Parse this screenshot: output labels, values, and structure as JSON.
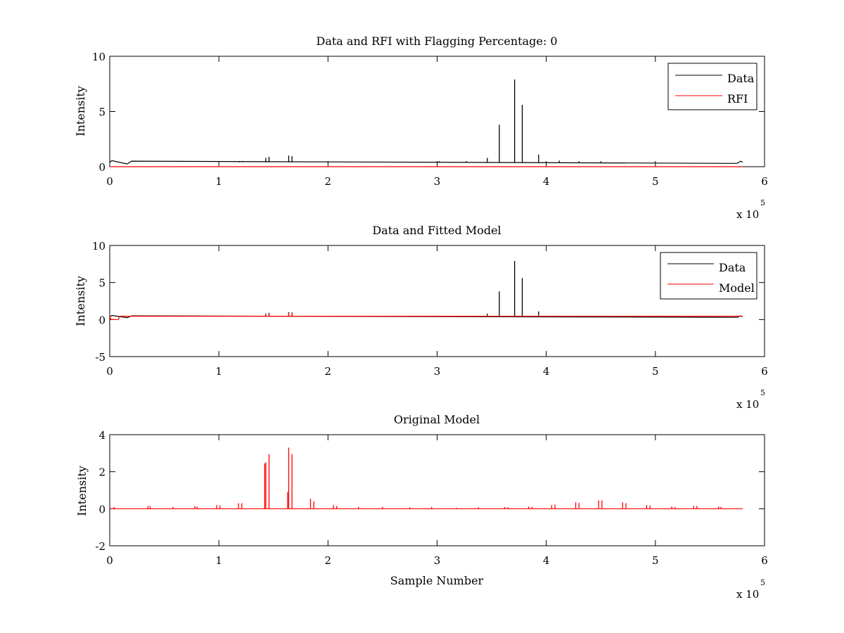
{
  "figure": {
    "background": "#ffffff",
    "colors": {
      "data": "#000000",
      "rfi": "#ff0000",
      "model": "#ff0000"
    }
  },
  "chart_data": [
    {
      "type": "line",
      "title": "Data and RFI with Flagging Percentage: 0",
      "xlabel": "",
      "ylabel": "Intensity",
      "xlim": [
        0,
        600000
      ],
      "ylim": [
        0,
        10
      ],
      "xticks": [
        0,
        100000,
        200000,
        300000,
        400000,
        500000,
        600000
      ],
      "xtick_labels": [
        "0",
        "1",
        "2",
        "3",
        "4",
        "5",
        "6"
      ],
      "yticks": [
        0,
        5,
        10
      ],
      "ytick_labels": [
        "0",
        "5",
        "10"
      ],
      "x_multiplier": {
        "base": "x 10",
        "exponent": "5"
      },
      "legend": {
        "position": "top-right",
        "entries": [
          "Data",
          "RFI"
        ]
      },
      "series": [
        {
          "name": "Data",
          "color": "#000000",
          "baseline": 0.4,
          "x_end": 580000,
          "dips": [
            [
              2000,
              0.55
            ],
            [
              16000,
              0.25
            ],
            [
              20000,
              0.5
            ],
            [
              575000,
              0.3
            ],
            [
              578000,
              0.5
            ]
          ],
          "spikes": [
            [
              143000,
              0.8
            ],
            [
              146000,
              0.9
            ],
            [
              164000,
              1.0
            ],
            [
              167000,
              0.95
            ],
            [
              119000,
              0.5
            ],
            [
              122000,
              0.5
            ],
            [
              302000,
              0.5
            ],
            [
              327000,
              0.5
            ],
            [
              346000,
              0.8
            ],
            [
              357000,
              3.8
            ],
            [
              371000,
              7.9
            ],
            [
              378000,
              5.6
            ],
            [
              393000,
              1.1
            ],
            [
              412000,
              0.55
            ],
            [
              430000,
              0.5
            ],
            [
              450000,
              0.5
            ]
          ]
        },
        {
          "name": "RFI",
          "color": "#ff0000",
          "baseline": 0,
          "x_end": 580000,
          "spikes": []
        }
      ]
    },
    {
      "type": "line",
      "title": "Data and Fitted Model",
      "xlabel": "",
      "ylabel": "Intensity",
      "xlim": [
        0,
        600000
      ],
      "ylim": [
        -5,
        10
      ],
      "xticks": [
        0,
        100000,
        200000,
        300000,
        400000,
        500000,
        600000
      ],
      "xtick_labels": [
        "0",
        "1",
        "2",
        "3",
        "4",
        "5",
        "6"
      ],
      "yticks": [
        -5,
        0,
        5,
        10
      ],
      "ytick_labels": [
        "-5",
        "0",
        "5",
        "10"
      ],
      "x_multiplier": {
        "base": "x 10",
        "exponent": "5"
      },
      "legend": {
        "position": "top-right",
        "entries": [
          "Data",
          "Model"
        ]
      },
      "series": [
        {
          "name": "Data",
          "color": "#000000",
          "baseline": 0.4,
          "x_end": 580000,
          "dips": [
            [
              2000,
              0.55
            ],
            [
              16000,
              0.25
            ],
            [
              20000,
              0.5
            ],
            [
              575000,
              0.3
            ],
            [
              578000,
              0.5
            ]
          ],
          "spikes": [
            [
              143000,
              0.8
            ],
            [
              146000,
              0.9
            ],
            [
              164000,
              1.0
            ],
            [
              167000,
              0.95
            ],
            [
              346000,
              0.8
            ],
            [
              357000,
              3.8
            ],
            [
              371000,
              7.9
            ],
            [
              378000,
              5.6
            ],
            [
              393000,
              1.1
            ]
          ]
        },
        {
          "name": "Model",
          "color": "#ff0000",
          "baseline": 0.45,
          "x_end": 580000,
          "dips": [
            [
              0,
              0.45
            ],
            [
              1000,
              0.0
            ],
            [
              8000,
              0.0
            ],
            [
              9000,
              0.45
            ]
          ],
          "spikes": [
            [
              143000,
              0.7
            ],
            [
              146000,
              0.8
            ],
            [
              164000,
              0.9
            ],
            [
              167000,
              0.85
            ],
            [
              393000,
              0.6
            ]
          ]
        }
      ]
    },
    {
      "type": "line",
      "title": "Original Model",
      "xlabel": "Sample Number",
      "ylabel": "Intensity",
      "xlim": [
        0,
        600000
      ],
      "ylim": [
        -2,
        4
      ],
      "xticks": [
        0,
        100000,
        200000,
        300000,
        400000,
        500000,
        600000
      ],
      "xtick_labels": [
        "0",
        "1",
        "2",
        "3",
        "4",
        "5",
        "6"
      ],
      "yticks": [
        -2,
        0,
        2,
        4
      ],
      "ytick_labels": [
        "-2",
        "0",
        "2",
        "4"
      ],
      "x_multiplier": {
        "base": "x 10",
        "exponent": "5"
      },
      "legend": null,
      "series": [
        {
          "color": "#ff0000",
          "baseline": 0,
          "x_end": 580000,
          "spikes": [
            [
              4000,
              0.1
            ],
            [
              35000,
              0.15
            ],
            [
              37000,
              0.15
            ],
            [
              58000,
              0.1
            ],
            [
              78000,
              0.15
            ],
            [
              80000,
              0.12
            ],
            [
              98000,
              0.2
            ],
            [
              101000,
              0.18
            ],
            [
              118000,
              0.3
            ],
            [
              121000,
              0.3
            ],
            [
              142000,
              2.45
            ],
            [
              143000,
              2.5
            ],
            [
              146000,
              2.95
            ],
            [
              163000,
              0.9
            ],
            [
              164000,
              3.3
            ],
            [
              167000,
              2.95
            ],
            [
              184000,
              0.55
            ],
            [
              187000,
              0.4
            ],
            [
              205000,
              0.2
            ],
            [
              208000,
              0.15
            ],
            [
              228000,
              0.1
            ],
            [
              250000,
              0.1
            ],
            [
              275000,
              0.08
            ],
            [
              295000,
              0.1
            ],
            [
              318000,
              0.05
            ],
            [
              338000,
              0.08
            ],
            [
              362000,
              0.1
            ],
            [
              365000,
              0.08
            ],
            [
              384000,
              0.12
            ],
            [
              387000,
              0.1
            ],
            [
              405000,
              0.2
            ],
            [
              408000,
              0.22
            ],
            [
              427000,
              0.35
            ],
            [
              430000,
              0.32
            ],
            [
              448000,
              0.45
            ],
            [
              451000,
              0.45
            ],
            [
              470000,
              0.35
            ],
            [
              473000,
              0.3
            ],
            [
              492000,
              0.2
            ],
            [
              495000,
              0.18
            ],
            [
              515000,
              0.12
            ],
            [
              518000,
              0.1
            ],
            [
              535000,
              0.15
            ],
            [
              538000,
              0.15
            ],
            [
              558000,
              0.12
            ],
            [
              560000,
              0.1
            ]
          ]
        }
      ]
    }
  ]
}
